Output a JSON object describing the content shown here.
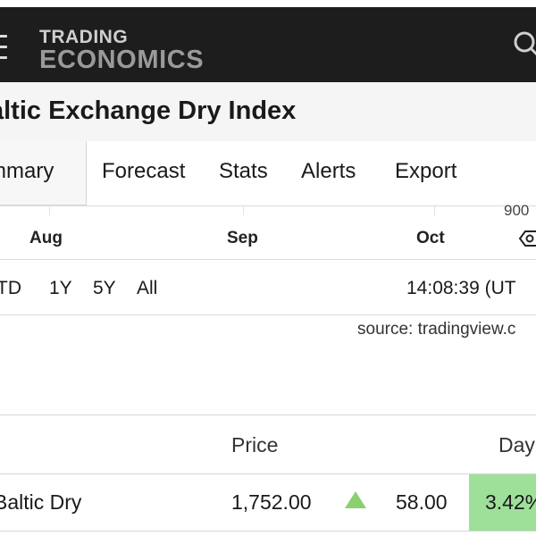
{
  "header": {
    "logo_line1": "TRADING",
    "logo_line2": "ECONOMICS",
    "icons": [
      "menu-icon",
      "search-icon"
    ]
  },
  "page": {
    "title": "altic Exchange Dry Index"
  },
  "tabs": [
    {
      "label": "mmary",
      "active": true
    },
    {
      "label": "Forecast"
    },
    {
      "label": "Stats"
    },
    {
      "label": "Alerts"
    },
    {
      "label": "Export"
    }
  ],
  "chart": {
    "y_tick_label": "900",
    "months": [
      "Aug",
      "Sep",
      "Oct"
    ],
    "settings_icon": "settings-icon"
  },
  "ranges": [
    "TD",
    "1Y",
    "5Y",
    "All"
  ],
  "timestamp": "14:08:39 (UT",
  "source": "source: tradingview.c",
  "table": {
    "headers": {
      "price": "Price",
      "day": "Day"
    },
    "rows": [
      {
        "name": "Baltic Dry",
        "price": "1,752.00",
        "direction": "up",
        "change": "58.00",
        "pct": "3.42%"
      }
    ],
    "colors": {
      "up": "#8ccf6e",
      "pct_bg": "#9ee09a"
    }
  },
  "colors": {
    "topbar": "#1d1d1d",
    "title_band": "#f5f5f5"
  }
}
